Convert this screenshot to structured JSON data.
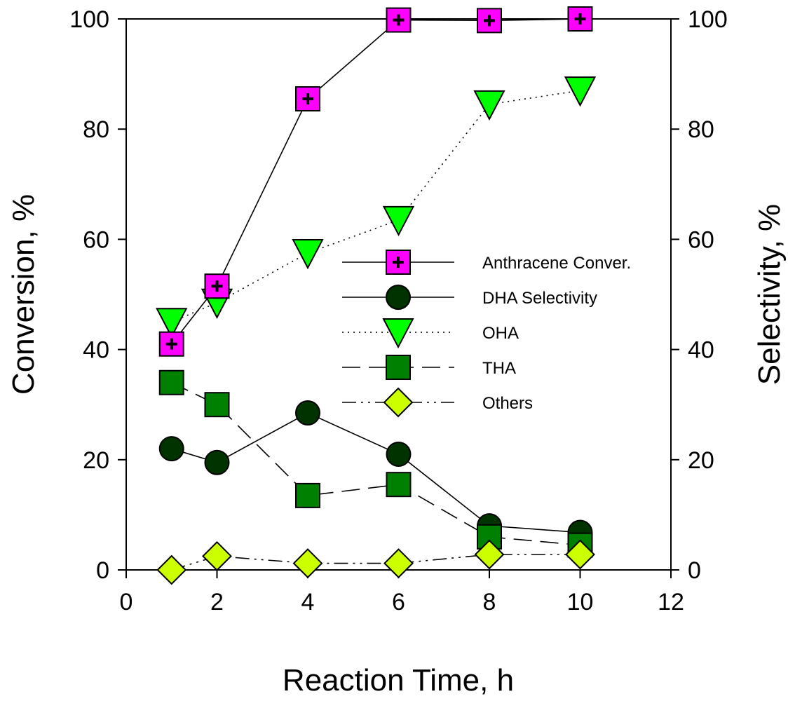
{
  "chart_data": {
    "type": "line",
    "title": "",
    "xlabel": "Reaction Time, h",
    "ylabel": "Conversion, %",
    "ylabel_right": "Selectivity, %",
    "xlim": [
      0,
      12
    ],
    "ylim": [
      0,
      100
    ],
    "ylim_right": [
      0,
      100
    ],
    "x_ticks": [
      "0",
      "2",
      "4",
      "6",
      "8",
      "10",
      "12"
    ],
    "y_ticks": [
      "0",
      "20",
      "40",
      "60",
      "80",
      "100"
    ],
    "y_ticks_right": [
      "0",
      "20",
      "40",
      "60",
      "80",
      "100"
    ],
    "grid": false,
    "legend_position": "center-right",
    "x": [
      1,
      2,
      4,
      6,
      8,
      10
    ],
    "series": [
      {
        "name": "Anthracene Conver.",
        "axis": "left",
        "marker": "square-plus",
        "line": "solid",
        "color": "#ff00ff",
        "values": [
          41,
          51.5,
          85.5,
          99.8,
          99.7,
          100
        ]
      },
      {
        "name": "DHA Selectivity",
        "axis": "right",
        "marker": "circle",
        "line": "solid",
        "color": "#003300",
        "values": [
          22,
          19.5,
          28.5,
          21,
          8,
          6.8
        ]
      },
      {
        "name": "OHA",
        "axis": "right",
        "marker": "triangle-down",
        "line": "dotted",
        "color": "#00ff00",
        "values": [
          45,
          48.5,
          57.5,
          63.5,
          84.5,
          87
        ]
      },
      {
        "name": "THA",
        "axis": "right",
        "marker": "square",
        "line": "dashed",
        "color": "#008000",
        "values": [
          34,
          30,
          13.5,
          15.5,
          6,
          4.5
        ]
      },
      {
        "name": "Others",
        "axis": "right",
        "marker": "diamond",
        "line": "dashdotdot",
        "color": "#ccff00",
        "values": [
          0,
          2.5,
          1.2,
          1.2,
          2.8,
          2.8
        ]
      }
    ]
  }
}
